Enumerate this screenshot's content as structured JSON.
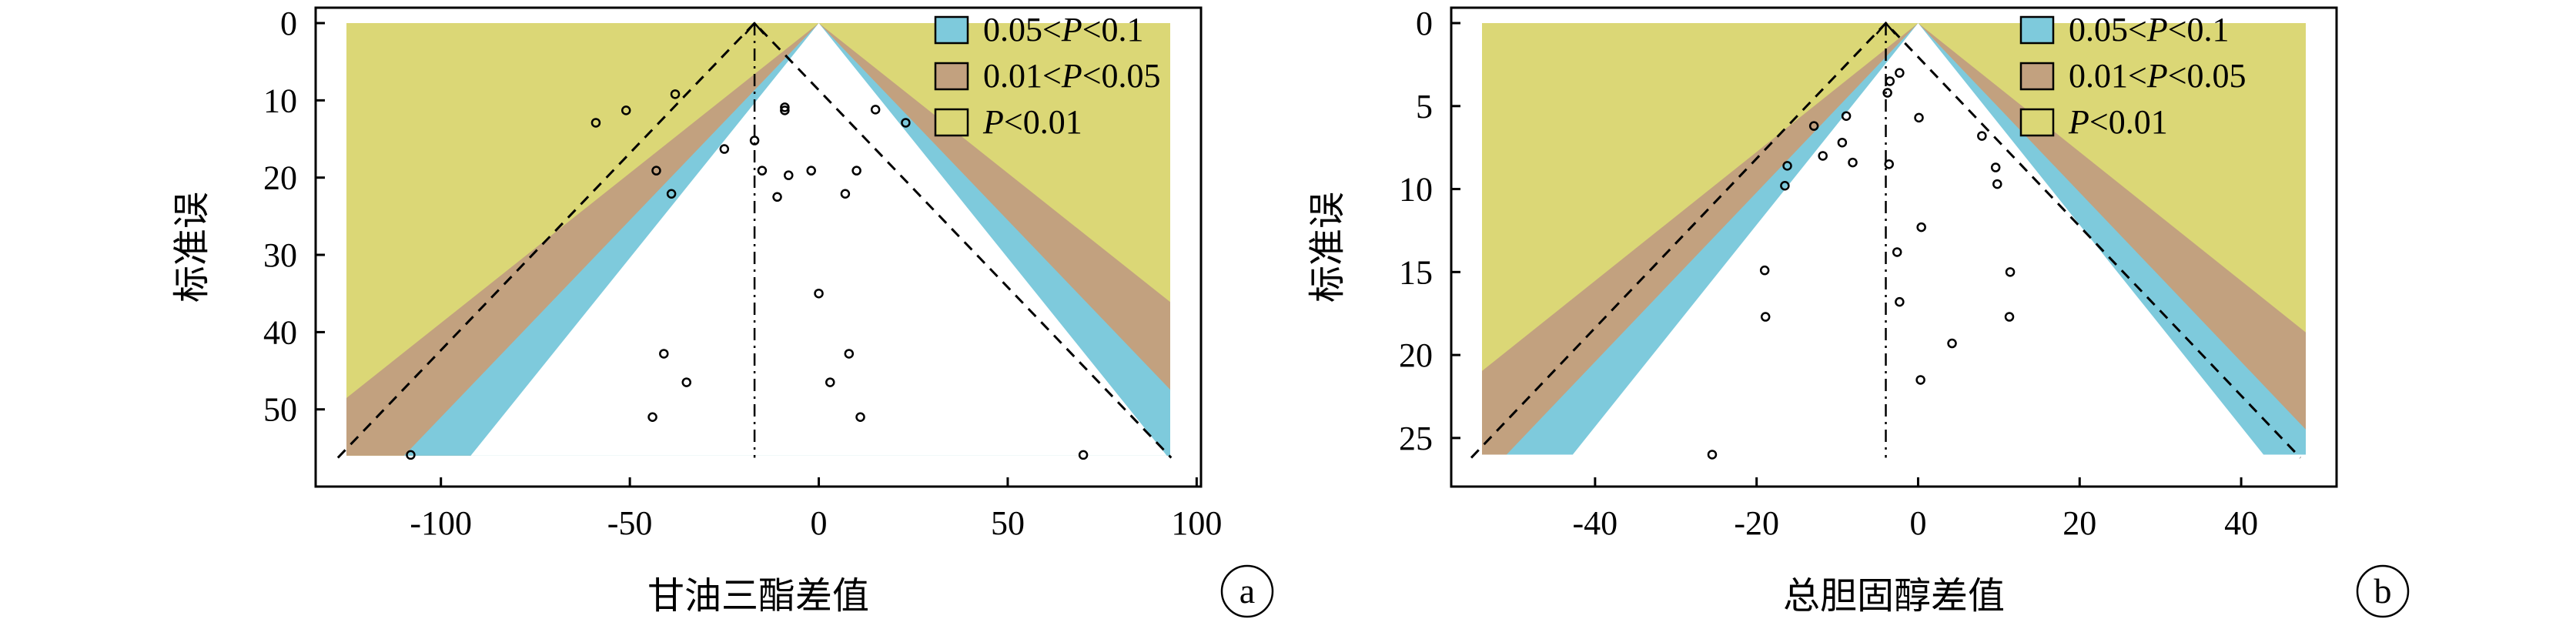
{
  "colors": {
    "p_lt_001": "#dbd776",
    "p_001_005": "#c2a17f",
    "p_005_01": "#7ecadc",
    "axis": "#000000",
    "point": "#000000"
  },
  "panels": [
    {
      "id": "a",
      "letter": "a",
      "xlabel": "甘油三酯差值",
      "ylabel": "标准误",
      "xlim": [
        -125,
        93
      ],
      "ylim": [
        0,
        58
      ],
      "shade_se_max": 56,
      "xticks": [
        -100,
        -50,
        0,
        50,
        100
      ],
      "yticks": [
        0,
        10,
        20,
        30,
        40,
        50
      ],
      "legend": [
        {
          "key": "p_005_01",
          "parts": [
            {
              "t": "0.05<"
            },
            {
              "t": "P",
              "i": true
            },
            {
              "t": "<0.1"
            }
          ]
        },
        {
          "key": "p_001_005",
          "parts": [
            {
              "t": "0.01<"
            },
            {
              "t": "P",
              "i": true
            },
            {
              "t": "<0.05"
            }
          ]
        },
        {
          "key": "p_lt_001",
          "parts": [
            {
              "t": "P",
              "i": true
            },
            {
              "t": "<0.01"
            }
          ]
        }
      ]
    },
    {
      "id": "b",
      "letter": "b",
      "xlabel": "总胆固醇差值",
      "ylabel": "标准误",
      "xlim": [
        -54,
        48
      ],
      "ylim": [
        0,
        27
      ],
      "shade_se_max": 26,
      "xticks": [
        -40,
        -20,
        0,
        20,
        40
      ],
      "yticks": [
        0,
        5,
        10,
        15,
        20,
        25
      ],
      "legend": [
        {
          "key": "p_005_01",
          "parts": [
            {
              "t": "0.05<"
            },
            {
              "t": "P",
              "i": true
            },
            {
              "t": "<0.1"
            }
          ]
        },
        {
          "key": "p_001_005",
          "parts": [
            {
              "t": "0.01<"
            },
            {
              "t": "P",
              "i": true
            },
            {
              "t": "<0.05"
            }
          ]
        },
        {
          "key": "p_lt_001",
          "parts": [
            {
              "t": "P",
              "i": true
            },
            {
              "t": "<0.01"
            }
          ]
        }
      ]
    }
  ],
  "chart_data": [
    {
      "type": "scatter",
      "subtype": "contour-enhanced funnel plot",
      "panel": "a",
      "xlabel": "甘油三酯差值",
      "ylabel": "标准误",
      "xlim": [
        -125,
        93
      ],
      "ylim": [
        0,
        58
      ],
      "y_inverted": true,
      "grid": false,
      "legend_position": "top-right",
      "reference_line_x": 0,
      "pooled_estimate_x": -17,
      "points": [
        {
          "x": -108,
          "y": 55.9
        },
        {
          "x": -59,
          "y": 12.9
        },
        {
          "x": -51,
          "y": 11.3
        },
        {
          "x": -38,
          "y": 9.2
        },
        {
          "x": -43,
          "y": 19.1
        },
        {
          "x": -39,
          "y": 22.1
        },
        {
          "x": -25,
          "y": 16.3
        },
        {
          "x": -17,
          "y": 15.2
        },
        {
          "x": -15,
          "y": 19.1
        },
        {
          "x": -9,
          "y": 11.3
        },
        {
          "x": -9,
          "y": 10.9
        },
        {
          "x": -11,
          "y": 22.5
        },
        {
          "x": -8,
          "y": 19.7
        },
        {
          "x": -2,
          "y": 19.1
        },
        {
          "x": 15,
          "y": 11.2
        },
        {
          "x": 23,
          "y": 12.9
        },
        {
          "x": 10,
          "y": 19.1
        },
        {
          "x": 7,
          "y": 22.1
        },
        {
          "x": 0,
          "y": 35.0
        },
        {
          "x": -41,
          "y": 42.8
        },
        {
          "x": -35,
          "y": 46.5
        },
        {
          "x": -44,
          "y": 51.0
        },
        {
          "x": 3,
          "y": 46.5
        },
        {
          "x": 8,
          "y": 42.8
        },
        {
          "x": 11,
          "y": 51.0
        },
        {
          "x": 70,
          "y": 55.9
        }
      ]
    },
    {
      "type": "scatter",
      "subtype": "contour-enhanced funnel plot",
      "panel": "b",
      "xlabel": "总胆固醇差值",
      "ylabel": "标准误",
      "xlim": [
        -54,
        48
      ],
      "ylim": [
        0,
        27
      ],
      "y_inverted": true,
      "grid": false,
      "legend_position": "top-right",
      "reference_line_x": 0,
      "pooled_estimate_x": -4,
      "points": [
        {
          "x": -3.5,
          "y": 3.5
        },
        {
          "x": -2.3,
          "y": 3.0
        },
        {
          "x": -3.8,
          "y": 4.2
        },
        {
          "x": -12.9,
          "y": 6.2
        },
        {
          "x": -11.8,
          "y": 8.0
        },
        {
          "x": -8.9,
          "y": 5.6
        },
        {
          "x": -9.4,
          "y": 7.2
        },
        {
          "x": -3.6,
          "y": 8.5
        },
        {
          "x": -8.1,
          "y": 8.4
        },
        {
          "x": -16.2,
          "y": 8.6
        },
        {
          "x": -16.5,
          "y": 9.8
        },
        {
          "x": 0.1,
          "y": 5.7
        },
        {
          "x": 7.9,
          "y": 6.8
        },
        {
          "x": 9.6,
          "y": 8.7
        },
        {
          "x": 9.8,
          "y": 9.7
        },
        {
          "x": 0.4,
          "y": 12.3
        },
        {
          "x": -2.6,
          "y": 13.8
        },
        {
          "x": -2.3,
          "y": 16.8
        },
        {
          "x": -19.0,
          "y": 14.9
        },
        {
          "x": -18.9,
          "y": 17.7
        },
        {
          "x": 4.2,
          "y": 19.3
        },
        {
          "x": 0.3,
          "y": 21.5
        },
        {
          "x": 11.4,
          "y": 15.0
        },
        {
          "x": 11.3,
          "y": 17.7
        },
        {
          "x": -25.5,
          "y": 26.0
        }
      ]
    }
  ]
}
